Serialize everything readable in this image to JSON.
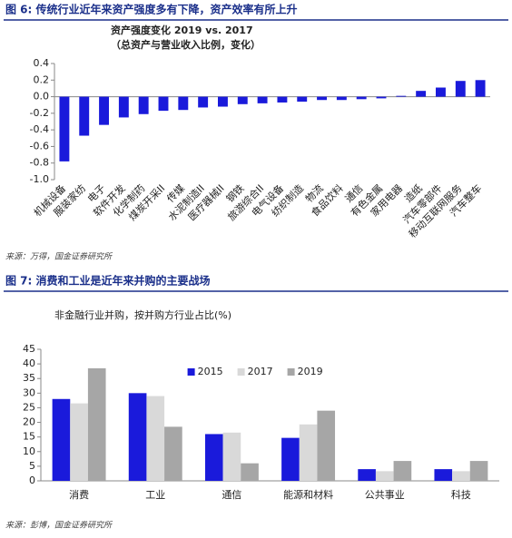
{
  "chart_data": [
    {
      "type": "bar",
      "caption": "图 6: 传统行业近年来资产强度多有下降，资产效率有所上升",
      "title": "资产强度变化 2019 vs. 2017",
      "subtitle": "（总资产与营业收入比例，变化）",
      "source": "来源：万得，国金证券研究所",
      "categories": [
        "机械设备",
        "服装家纺",
        "电子",
        "软件开发",
        "化学制药",
        "煤炭开采II",
        "传媒",
        "水泥制造II",
        "医疗器械II",
        "钢铁",
        "旅游综合II",
        "电气设备",
        "纺织制造",
        "物流",
        "食品饮料",
        "通信",
        "有色金属",
        "家用电器",
        "造纸",
        "汽车零部件",
        "移动互联网服务",
        "汽车整车"
      ],
      "values": [
        -0.78,
        -0.47,
        -0.34,
        -0.25,
        -0.21,
        -0.17,
        -0.16,
        -0.13,
        -0.12,
        -0.09,
        -0.08,
        -0.07,
        -0.06,
        -0.04,
        -0.04,
        -0.03,
        -0.02,
        0.01,
        0.07,
        0.11,
        0.19,
        0.2
      ],
      "color": "#1a1adb",
      "ylim": [
        -1.0,
        0.4
      ],
      "yticks": [
        {
          "value": -1.0,
          "label": "-1.0"
        },
        -0.8,
        -0.6,
        -0.4,
        -0.2,
        {
          "value": 0,
          "label": "0.0"
        },
        0.2,
        0.4
      ],
      "grid": false
    },
    {
      "type": "grouped-bar",
      "caption": "图 7: 消费和工业是近年来并购的主要战场",
      "title": "非金融行业并购，按并购方行业占比(%)",
      "source": "来源：彭博，国金证券研究所",
      "categories": [
        "消费",
        "工业",
        "通信",
        "能源和材料",
        "公共事业",
        "科技"
      ],
      "series": [
        {
          "name": "2015",
          "color": "#1a1adb",
          "values": [
            28,
            30,
            16,
            14.7,
            4,
            4
          ]
        },
        {
          "name": "2017",
          "color": "#d9d9d9",
          "values": [
            26.5,
            29,
            16.5,
            19.3,
            3.3,
            3.3
          ]
        },
        {
          "name": "2019",
          "color": "#a6a6a6",
          "values": [
            38.5,
            18.5,
            6,
            24,
            6.8,
            6.8
          ]
        }
      ],
      "ylim": [
        0,
        45
      ],
      "yticks": [
        0,
        5,
        10,
        15,
        20,
        25,
        30,
        35,
        40,
        45
      ],
      "grid": false,
      "legend": "top"
    }
  ]
}
